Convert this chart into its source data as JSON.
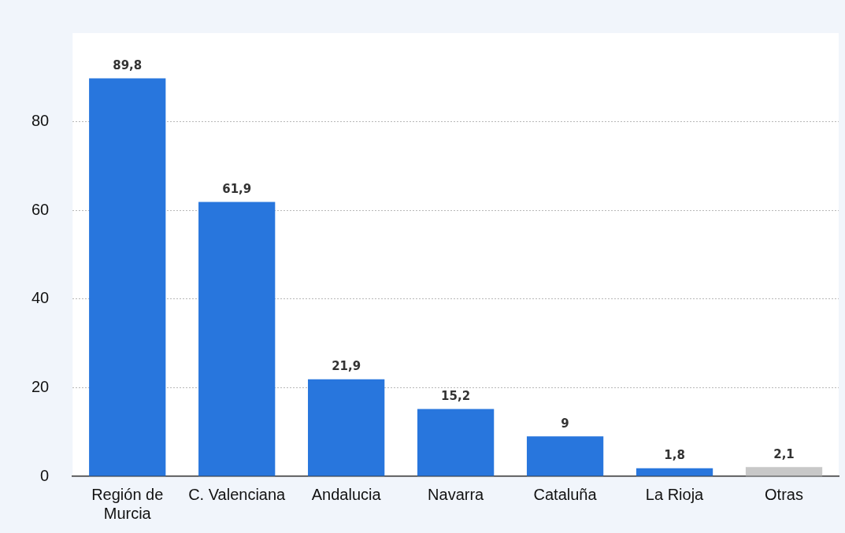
{
  "chart_data": {
    "type": "bar",
    "categories": [
      "Región de Murcia",
      "C. Valenciana",
      "Andalucia",
      "Navarra",
      "Cataluña",
      "La Rioja",
      "Otras"
    ],
    "values": [
      89.8,
      61.9,
      21.9,
      15.2,
      9,
      1.8,
      2.1
    ],
    "colors": [
      "#2876dd",
      "#2876dd",
      "#2876dd",
      "#2876dd",
      "#2876dd",
      "#2876dd",
      "#c8c8c8"
    ],
    "value_labels": [
      "89,8",
      "61,9",
      "21,9",
      "15,2",
      "9",
      "1,8",
      "2,1"
    ],
    "ylim": [
      0,
      100
    ],
    "yticks": [
      0,
      20,
      40,
      60,
      80
    ],
    "grid": "y",
    "legend": false
  }
}
